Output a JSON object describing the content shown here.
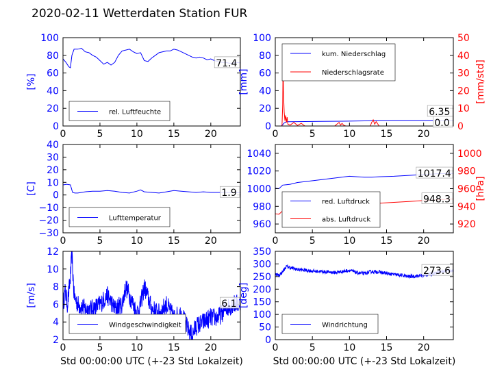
{
  "title": "2020-02-11 Wetterdaten Station FUR",
  "chart_data": [
    {
      "id": "humidity",
      "type": "line",
      "ylabel": "[%]",
      "y2label": "",
      "ylim": [
        0,
        100
      ],
      "yticks": [
        0,
        20,
        40,
        60,
        80,
        100
      ],
      "xlim": [
        0,
        24
      ],
      "xticks": [
        0,
        5,
        10,
        15,
        20
      ],
      "xlabel": "",
      "last_value_label": "71.4",
      "legend": [
        "rel. Luftfeuchte"
      ],
      "legend_position": "lower-center",
      "series": [
        {
          "name": "rel. Luftfeuchte",
          "axis": "left",
          "color": "#0000ff",
          "x": [
            0,
            0.4,
            0.8,
            1.0,
            1.2,
            1.5,
            2.0,
            2.5,
            3.0,
            3.5,
            4.0,
            4.5,
            5.0,
            5.5,
            6.0,
            6.5,
            7.0,
            7.5,
            8.0,
            8.5,
            9.0,
            9.5,
            10.0,
            10.5,
            11.0,
            11.5,
            12.0,
            12.5,
            13.0,
            13.5,
            14.0,
            14.5,
            15.0,
            15.5,
            16.0,
            16.5,
            17.0,
            17.5,
            18.0,
            18.5,
            19.0,
            19.5,
            20.0,
            20.5,
            21.0,
            21.5,
            22.0,
            22.5,
            23.0,
            23.5,
            24.0
          ],
          "y": [
            76,
            72,
            67,
            66,
            80,
            87,
            87,
            88,
            84,
            83,
            80,
            78,
            74,
            70,
            72,
            69,
            72,
            80,
            85,
            86,
            87,
            84,
            82,
            83,
            74,
            73,
            77,
            80,
            83,
            84,
            85,
            85,
            87,
            86,
            84,
            82,
            80,
            78,
            77,
            78,
            77,
            75,
            76,
            74,
            73,
            72,
            72,
            71,
            71,
            72,
            71.4
          ]
        }
      ]
    },
    {
      "id": "precipitation",
      "type": "line",
      "ylabel": "[mm]",
      "y2label": "[mm/std]",
      "ylim": [
        0,
        100
      ],
      "yticks": [
        0,
        20,
        40,
        60,
        80,
        100
      ],
      "y2lim": [
        0,
        50
      ],
      "y2ticks": [
        0,
        10,
        20,
        30,
        40,
        50
      ],
      "xlim": [
        0,
        24
      ],
      "xticks": [
        0,
        5,
        10,
        15,
        20
      ],
      "xlabel": "",
      "last_value_label": "6.35",
      "last_value_label_2": "0.0",
      "legend": [
        "kum. Niederschlag",
        "Niederschlagsrate"
      ],
      "legend_position": "upper-left",
      "series": [
        {
          "name": "kum. Niederschlag",
          "axis": "left",
          "color": "#0000ff",
          "x": [
            0,
            0.8,
            1.0,
            1.2,
            1.5,
            3.0,
            6.0,
            9.0,
            12.0,
            13.0,
            13.5,
            16.0,
            20.0,
            24.0
          ],
          "y": [
            0,
            0,
            1.5,
            3.5,
            4.8,
            5.0,
            5.2,
            5.4,
            5.8,
            6.1,
            6.3,
            6.35,
            6.35,
            6.35
          ]
        },
        {
          "name": "Niederschlagsrate",
          "axis": "right",
          "color": "#ff0000",
          "x": [
            0,
            0.9,
            1.0,
            1.05,
            1.1,
            1.2,
            1.3,
            1.4,
            1.5,
            1.6,
            1.7,
            2.0,
            2.5,
            3.0,
            3.5,
            4.0,
            4.5,
            8.0,
            8.3,
            8.6,
            8.8,
            9.0,
            9.2,
            9.5,
            12.8,
            13.0,
            13.2,
            13.4,
            13.6,
            14.0,
            24.0
          ],
          "y": [
            0,
            0,
            12,
            38,
            20,
            8,
            3,
            6,
            2,
            5,
            1,
            0.5,
            2,
            0.3,
            1.5,
            0,
            0,
            0,
            1,
            2,
            0.5,
            1.5,
            0.5,
            0,
            0,
            2,
            3.5,
            1,
            2.5,
            0,
            0
          ]
        }
      ]
    },
    {
      "id": "temperature",
      "type": "line",
      "ylabel": "[C]",
      "y2label": "",
      "ylim": [
        -30,
        40
      ],
      "yticks": [
        -30,
        -20,
        -10,
        0,
        10,
        20,
        30,
        40
      ],
      "xlim": [
        0,
        24
      ],
      "xticks": [
        0,
        5,
        10,
        15,
        20
      ],
      "xlabel": "",
      "last_value_label": "1.9",
      "legend": [
        "Lufttemperatur"
      ],
      "legend_position": "lower-center",
      "series": [
        {
          "name": "Lufttemperatur",
          "axis": "left",
          "color": "#0000ff",
          "x": [
            0,
            0.5,
            1.0,
            1.3,
            1.6,
            2.0,
            3.0,
            4.0,
            5.0,
            6.0,
            7.0,
            8.0,
            9.0,
            10.0,
            10.5,
            11.0,
            12.0,
            13.0,
            14.0,
            15.0,
            16.0,
            17.0,
            18.0,
            19.0,
            20.0,
            21.0,
            22.0,
            23.0,
            24.0
          ],
          "y": [
            8,
            8.5,
            8,
            2,
            1.5,
            1.5,
            2.5,
            3,
            3,
            3.5,
            3,
            2,
            1.5,
            3,
            4,
            2.5,
            2,
            1.5,
            2.5,
            3.5,
            3,
            2.5,
            2,
            2.5,
            2,
            2,
            2,
            1.8,
            1.9
          ]
        }
      ]
    },
    {
      "id": "pressure",
      "type": "line",
      "ylabel": "",
      "y2label": "[hPa]",
      "ylim": [
        950,
        1050
      ],
      "yticks": [
        960,
        980,
        1000,
        1020,
        1040
      ],
      "y2lim": [
        910,
        1010
      ],
      "y2ticks": [
        920,
        940,
        960,
        980,
        1000
      ],
      "xlim": [
        0,
        24
      ],
      "xticks": [
        0,
        5,
        10,
        15,
        20
      ],
      "xlabel": "",
      "last_value_label": "1017.4",
      "last_value_label_2": "948.3",
      "legend": [
        "red. Luftdruck",
        "abs. Luftdruck"
      ],
      "legend_position": "lower-left",
      "series": [
        {
          "name": "red. Luftdruck",
          "axis": "left",
          "color": "#0000ff",
          "x": [
            0,
            0.5,
            1.0,
            1.5,
            2,
            3,
            4,
            6,
            8,
            10,
            11,
            12,
            13,
            14,
            16,
            18,
            20,
            22,
            24
          ],
          "y": [
            1000.5,
            1000,
            1004,
            1004.5,
            1005,
            1007,
            1008,
            1010,
            1012,
            1014,
            1013.5,
            1013,
            1013,
            1013.5,
            1014,
            1015,
            1016,
            1017,
            1017.4
          ]
        },
        {
          "name": "abs. Luftdruck",
          "axis": "right",
          "color": "#ff0000",
          "x": [
            0,
            0.5,
            1.0,
            1.5,
            2,
            3,
            4,
            6,
            8,
            10,
            11,
            12,
            13,
            14,
            16,
            18,
            20,
            22,
            24
          ],
          "y": [
            931.5,
            931,
            935,
            935.5,
            936,
            937.5,
            938.5,
            940.5,
            942,
            944,
            943.5,
            943,
            943,
            943.5,
            944.5,
            945.5,
            946.5,
            947.5,
            948.3
          ]
        }
      ]
    },
    {
      "id": "windspeed",
      "type": "line",
      "ylabel": "[m/s]",
      "y2label": "",
      "ylim": [
        2,
        12
      ],
      "yticks": [
        2,
        4,
        6,
        8,
        10,
        12
      ],
      "xlim": [
        0,
        24
      ],
      "xticks": [
        0,
        5,
        10,
        15,
        20
      ],
      "xlabel": "Std 00:00:00 UTC (+-23 Std Lokalzeit)",
      "last_value_label": "6.1",
      "legend": [
        "Windgeschwindigkeit"
      ],
      "legend_position": "lower-center",
      "series": [
        {
          "name": "Windgeschwindigkeit",
          "axis": "left",
          "color": "#0000ff",
          "x": [
            0,
            0.3,
            0.6,
            1.0,
            1.2,
            1.5,
            2,
            3,
            4,
            5,
            6,
            7,
            8,
            8.5,
            9,
            9.5,
            10,
            10.5,
            11,
            12,
            13,
            14,
            15,
            16,
            17,
            17.5,
            18,
            19,
            20,
            21,
            22,
            23,
            24
          ],
          "y": [
            6,
            7.5,
            6,
            9,
            11.6,
            7,
            6,
            5.5,
            5.5,
            6,
            7,
            5.5,
            6,
            8,
            7,
            6,
            5,
            6,
            8,
            5.5,
            5,
            6,
            4.5,
            5,
            3,
            2.5,
            3.5,
            4,
            4.5,
            4.5,
            5.5,
            6,
            6.1
          ],
          "noise": 1.1
        }
      ]
    },
    {
      "id": "winddirection",
      "type": "line",
      "ylabel": "[deg]",
      "y2label": "",
      "ylim": [
        0,
        350
      ],
      "yticks": [
        0,
        50,
        100,
        150,
        200,
        250,
        300,
        350
      ],
      "xlim": [
        0,
        24
      ],
      "xticks": [
        0,
        5,
        10,
        15,
        20
      ],
      "xlabel": "Std 00:00:00 UTC (+-23 Std Lokalzeit)",
      "last_value_label": "273.6",
      "legend": [
        "Windrichtung"
      ],
      "legend_position": "lower-left",
      "series": [
        {
          "name": "Windrichtung",
          "axis": "left",
          "color": "#0000ff",
          "x": [
            0,
            0.5,
            1.0,
            1.5,
            2,
            3,
            4,
            5,
            6,
            7,
            8,
            9,
            10,
            11,
            12,
            13,
            14,
            15,
            16,
            17,
            18,
            19,
            20,
            21,
            22,
            23,
            24
          ],
          "y": [
            260,
            255,
            270,
            290,
            285,
            278,
            275,
            272,
            270,
            268,
            266,
            270,
            275,
            265,
            262,
            270,
            268,
            262,
            258,
            255,
            250,
            252,
            255,
            260,
            268,
            272,
            273.6
          ],
          "noise": 7
        }
      ]
    }
  ]
}
